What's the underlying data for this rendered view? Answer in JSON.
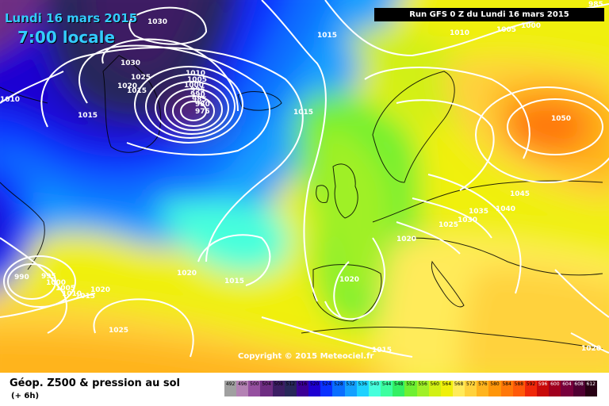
{
  "header": {
    "date_line": "Lundi 16 mars 2015",
    "time_line": "7:00 locale",
    "run_line": "Run GFS 0 Z du Lundi 16 mars 2015"
  },
  "copyright": "Copyright © 2015 Meteociel.fr",
  "legend": {
    "title": "Géop. Z500 & pression au sol",
    "subtitle": "(+ 6h)",
    "scale": [
      {
        "value": "492",
        "color": "#a0a0a0"
      },
      {
        "value": "496",
        "color": "#b482b4"
      },
      {
        "value": "500",
        "color": "#9650a0"
      },
      {
        "value": "504",
        "color": "#6e2d82"
      },
      {
        "value": "508",
        "color": "#3c1e64"
      },
      {
        "value": "512",
        "color": "#28285a"
      },
      {
        "value": "516",
        "color": "#3c0096"
      },
      {
        "value": "520",
        "color": "#1e00d2"
      },
      {
        "value": "524",
        "color": "#0a32ff"
      },
      {
        "value": "528",
        "color": "#0a6eff"
      },
      {
        "value": "532",
        "color": "#14a0ff"
      },
      {
        "value": "536",
        "color": "#1ed2ff"
      },
      {
        "value": "540",
        "color": "#46ffdc"
      },
      {
        "value": "544",
        "color": "#3cffa0"
      },
      {
        "value": "548",
        "color": "#32f064"
      },
      {
        "value": "552",
        "color": "#6ef032"
      },
      {
        "value": "556",
        "color": "#a0f028"
      },
      {
        "value": "560",
        "color": "#d2f014"
      },
      {
        "value": "564",
        "color": "#f0f00a"
      },
      {
        "value": "568",
        "color": "#ffeb5a"
      },
      {
        "value": "572",
        "color": "#ffd23c"
      },
      {
        "value": "576",
        "color": "#ffb41e"
      },
      {
        "value": "580",
        "color": "#ff960a"
      },
      {
        "value": "584",
        "color": "#ff780a"
      },
      {
        "value": "588",
        "color": "#ff5a0a"
      },
      {
        "value": "592",
        "color": "#f0280a"
      },
      {
        "value": "596",
        "color": "#c80a0a"
      },
      {
        "value": "600",
        "color": "#a0001e"
      },
      {
        "value": "604",
        "color": "#78003c"
      },
      {
        "value": "608",
        "color": "#500032"
      },
      {
        "value": "612",
        "color": "#280014"
      }
    ]
  },
  "isobar_labels": [
    {
      "id": "1030-north",
      "text": "1030"
    },
    {
      "id": "1030-greenland",
      "text": "1030"
    },
    {
      "id": "1025-greenland",
      "text": "1025"
    },
    {
      "id": "1020-greenland",
      "text": "1020"
    },
    {
      "id": "1015-greenland",
      "text": "1015"
    },
    {
      "id": "1015-west",
      "text": "1015"
    },
    {
      "id": "1010-west",
      "text": "1010"
    },
    {
      "id": "1010-low",
      "text": "1010"
    },
    {
      "id": "1005-low",
      "text": "1005"
    },
    {
      "id": "1000-low",
      "text": "1000"
    },
    {
      "id": "995-low",
      "text": "995"
    },
    {
      "id": "990-low",
      "text": "990"
    },
    {
      "id": "985-low",
      "text": "985"
    },
    {
      "id": "980-low",
      "text": "980"
    },
    {
      "id": "975-low",
      "text": "975"
    },
    {
      "id": "1015-top",
      "text": "1015"
    },
    {
      "id": "1015-iceland",
      "text": "1015"
    },
    {
      "id": "1010-top",
      "text": "1010"
    },
    {
      "id": "1005-top",
      "text": "1005"
    },
    {
      "id": "1000-top",
      "text": "1000"
    },
    {
      "id": "985-corner",
      "text": "985"
    },
    {
      "id": "1050-russia",
      "text": "1050"
    },
    {
      "id": "1045-russia",
      "text": "1045"
    },
    {
      "id": "1040-europe",
      "text": "1040"
    },
    {
      "id": "1035-europe",
      "text": "1035"
    },
    {
      "id": "1030-europe",
      "text": "1030"
    },
    {
      "id": "1025-europe",
      "text": "1025"
    },
    {
      "id": "1020-france",
      "text": "1020"
    },
    {
      "id": "1020-iberia",
      "text": "1020"
    },
    {
      "id": "1020-atlantic",
      "text": "1020"
    },
    {
      "id": "1015-atlantic",
      "text": "1015"
    },
    {
      "id": "990-sw",
      "text": "990"
    },
    {
      "id": "995-sw",
      "text": "995"
    },
    {
      "id": "1000-sw",
      "text": "1000"
    },
    {
      "id": "1005-sw",
      "text": "1005"
    },
    {
      "id": "1010-sw",
      "text": "1010"
    },
    {
      "id": "1015-sw",
      "text": "1015"
    },
    {
      "id": "1020-sw",
      "text": "1020"
    },
    {
      "id": "1025-sw",
      "text": "1025"
    },
    {
      "id": "1015-med",
      "text": "1015"
    },
    {
      "id": "1020-east",
      "text": "1020"
    }
  ]
}
